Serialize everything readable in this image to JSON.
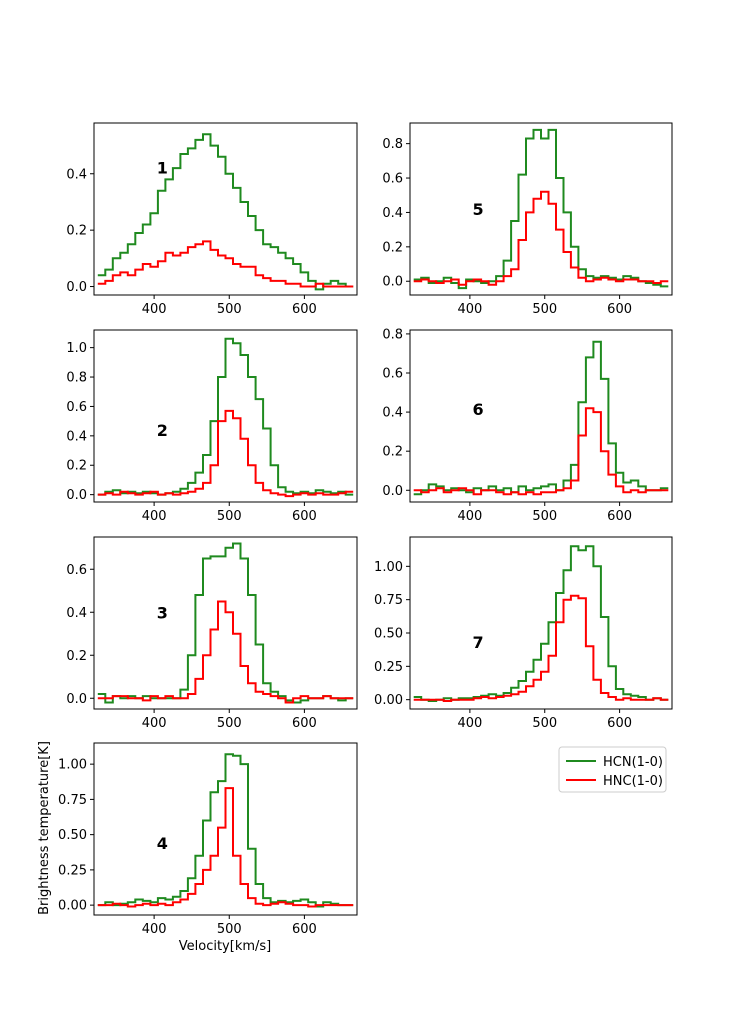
{
  "chart_data": {
    "type": "line",
    "style": "step",
    "xlabel": "Velocity[km/s]",
    "ylabel": "Brightness temperature[K]",
    "colors": {
      "HCN": "#1f8a1f",
      "HNC": "#ff0000"
    },
    "legend": {
      "position": "right-bottom",
      "entries": [
        {
          "name": "HCN(1-0)",
          "color": "#1f8a1f"
        },
        {
          "name": "HNC(1-0)",
          "color": "#ff0000"
        }
      ]
    },
    "xlim": [
      320,
      670
    ],
    "x": [
      330,
      340,
      350,
      360,
      370,
      380,
      390,
      400,
      410,
      420,
      430,
      440,
      450,
      460,
      470,
      480,
      490,
      500,
      510,
      520,
      530,
      540,
      550,
      560,
      570,
      580,
      590,
      600,
      610,
      620,
      630,
      640,
      650,
      660
    ],
    "panels": [
      {
        "id": "1",
        "label": "1",
        "ylim": [
          -0.03,
          0.58
        ],
        "yticks": [
          0.0,
          0.2,
          0.4
        ],
        "ytick_labels": [
          "0.0",
          "0.2",
          "0.4"
        ],
        "xticks": [
          400,
          500,
          600
        ],
        "xtick_labels": [
          "400",
          "500",
          "600"
        ],
        "series": [
          {
            "name": "HCN(1-0)",
            "values": [
              0.04,
              0.06,
              0.1,
              0.12,
              0.15,
              0.19,
              0.22,
              0.26,
              0.34,
              0.38,
              0.42,
              0.47,
              0.49,
              0.52,
              0.54,
              0.5,
              0.46,
              0.4,
              0.35,
              0.3,
              0.25,
              0.2,
              0.15,
              0.14,
              0.12,
              0.1,
              0.08,
              0.05,
              0.02,
              -0.01,
              0.01,
              0.02,
              0.01,
              0.0
            ]
          },
          {
            "name": "HNC(1-0)",
            "values": [
              0.01,
              0.02,
              0.04,
              0.05,
              0.04,
              0.06,
              0.08,
              0.07,
              0.09,
              0.12,
              0.11,
              0.12,
              0.14,
              0.15,
              0.16,
              0.13,
              0.11,
              0.1,
              0.08,
              0.07,
              0.07,
              0.04,
              0.03,
              0.02,
              0.02,
              0.01,
              0.01,
              0.0,
              0.0,
              0.01,
              0.0,
              0.0,
              0.0,
              0.0
            ]
          }
        ]
      },
      {
        "id": "5",
        "label": "5",
        "ylim": [
          -0.08,
          0.92
        ],
        "yticks": [
          0.0,
          0.2,
          0.4,
          0.6,
          0.8
        ],
        "ytick_labels": [
          "0.0",
          "0.2",
          "0.4",
          "0.6",
          "0.8"
        ],
        "xticks": [
          400,
          500,
          600
        ],
        "xtick_labels": [
          "400",
          "500",
          "600"
        ],
        "series": [
          {
            "name": "HCN(1-0)",
            "values": [
              0.01,
              0.02,
              -0.01,
              0.0,
              0.02,
              -0.01,
              -0.04,
              0.01,
              0.0,
              -0.01,
              0.0,
              0.03,
              0.12,
              0.35,
              0.62,
              0.83,
              0.88,
              0.83,
              0.88,
              0.6,
              0.4,
              0.2,
              0.07,
              0.03,
              0.02,
              0.03,
              0.02,
              0.01,
              0.03,
              0.02,
              0.0,
              -0.01,
              -0.02,
              -0.03
            ]
          },
          {
            "name": "HNC(1-0)",
            "values": [
              0.0,
              0.01,
              0.0,
              -0.01,
              0.0,
              0.01,
              -0.02,
              0.0,
              0.01,
              0.0,
              -0.02,
              0.0,
              0.03,
              0.07,
              0.24,
              0.4,
              0.48,
              0.52,
              0.45,
              0.3,
              0.17,
              0.08,
              0.02,
              0.0,
              0.01,
              0.02,
              0.01,
              0.0,
              0.01,
              0.01,
              0.0,
              0.0,
              -0.01,
              0.0
            ]
          }
        ]
      },
      {
        "id": "2",
        "label": "2",
        "ylim": [
          -0.05,
          1.12
        ],
        "yticks": [
          0.0,
          0.2,
          0.4,
          0.6,
          0.8,
          1.0
        ],
        "ytick_labels": [
          "0.0",
          "0.2",
          "0.4",
          "0.6",
          "0.8",
          "1.0"
        ],
        "xticks": [
          400,
          500,
          600
        ],
        "xtick_labels": [
          "400",
          "500",
          "600"
        ],
        "series": [
          {
            "name": "HCN(1-0)",
            "values": [
              0.0,
              0.02,
              0.03,
              0.01,
              0.02,
              0.01,
              0.02,
              0.01,
              0.0,
              0.01,
              0.02,
              0.04,
              0.08,
              0.15,
              0.27,
              0.5,
              0.8,
              1.06,
              1.03,
              0.95,
              0.8,
              0.65,
              0.45,
              0.2,
              0.05,
              0.02,
              0.01,
              0.02,
              0.01,
              0.03,
              0.02,
              0.01,
              0.02,
              0.0
            ]
          },
          {
            "name": "HNC(1-0)",
            "values": [
              0.0,
              0.01,
              0.0,
              0.02,
              0.01,
              0.0,
              0.01,
              0.02,
              0.0,
              0.01,
              0.0,
              0.01,
              0.02,
              0.04,
              0.08,
              0.2,
              0.5,
              0.57,
              0.52,
              0.38,
              0.2,
              0.08,
              0.03,
              0.01,
              0.0,
              -0.01,
              0.0,
              0.01,
              0.0,
              0.01,
              0.0,
              0.0,
              0.01,
              0.02
            ]
          }
        ]
      },
      {
        "id": "6",
        "label": "6",
        "ylim": [
          -0.06,
          0.82
        ],
        "yticks": [
          0.0,
          0.2,
          0.4,
          0.6,
          0.8
        ],
        "ytick_labels": [
          "0.0",
          "0.2",
          "0.4",
          "0.6",
          "0.8"
        ],
        "xticks": [
          400,
          500,
          600
        ],
        "xtick_labels": [
          "400",
          "500",
          "600"
        ],
        "series": [
          {
            "name": "HCN(1-0)",
            "values": [
              -0.02,
              0.0,
              0.03,
              0.02,
              0.0,
              0.01,
              0.0,
              -0.01,
              0.01,
              0.0,
              0.02,
              0.0,
              0.01,
              -0.01,
              0.02,
              0.0,
              0.01,
              0.02,
              0.03,
              0.0,
              0.05,
              0.13,
              0.45,
              0.68,
              0.76,
              0.57,
              0.24,
              0.09,
              0.04,
              0.05,
              0.02,
              0.0,
              0.0,
              0.01
            ]
          },
          {
            "name": "HNC(1-0)",
            "values": [
              0.0,
              -0.01,
              0.0,
              0.01,
              -0.01,
              0.0,
              0.01,
              0.0,
              -0.02,
              0.0,
              0.0,
              -0.01,
              -0.02,
              -0.01,
              -0.02,
              -0.01,
              -0.02,
              -0.01,
              -0.01,
              0.0,
              0.01,
              0.05,
              0.28,
              0.42,
              0.4,
              0.2,
              0.08,
              0.02,
              -0.01,
              0.0,
              -0.01,
              0.0,
              0.0,
              0.0
            ]
          }
        ]
      },
      {
        "id": "3",
        "label": "3",
        "ylim": [
          -0.05,
          0.75
        ],
        "yticks": [
          0.0,
          0.2,
          0.4,
          0.6
        ],
        "ytick_labels": [
          "0.0",
          "0.2",
          "0.4",
          "0.6"
        ],
        "xticks": [
          400,
          500,
          600
        ],
        "xtick_labels": [
          "400",
          "500",
          "600"
        ],
        "series": [
          {
            "name": "HCN(1-0)",
            "values": [
              0.02,
              -0.02,
              0.01,
              0.0,
              0.01,
              0.0,
              0.01,
              0.0,
              0.0,
              0.0,
              0.0,
              0.04,
              0.2,
              0.48,
              0.65,
              0.66,
              0.66,
              0.7,
              0.72,
              0.65,
              0.48,
              0.25,
              0.07,
              0.03,
              0.01,
              -0.01,
              -0.02,
              -0.01,
              0.0,
              0.0,
              0.01,
              0.0,
              -0.01,
              0.0
            ]
          },
          {
            "name": "HNC(1-0)",
            "values": [
              0.0,
              0.0,
              0.01,
              0.01,
              0.0,
              0.0,
              -0.01,
              0.01,
              0.0,
              0.01,
              0.0,
              0.0,
              0.02,
              0.09,
              0.2,
              0.32,
              0.45,
              0.4,
              0.3,
              0.15,
              0.07,
              0.03,
              0.02,
              0.01,
              0.0,
              -0.02,
              0.0,
              0.01,
              0.0,
              0.0,
              0.01,
              0.0,
              0.0,
              0.0
            ]
          }
        ]
      },
      {
        "id": "7",
        "label": "7",
        "ylim": [
          -0.07,
          1.22
        ],
        "yticks": [
          0.0,
          0.25,
          0.5,
          0.75,
          1.0
        ],
        "ytick_labels": [
          "0.00",
          "0.25",
          "0.50",
          "0.75",
          "1.00"
        ],
        "xticks": [
          400,
          500,
          600
        ],
        "xtick_labels": [
          "400",
          "500",
          "600"
        ],
        "series": [
          {
            "name": "HCN(1-0)",
            "values": [
              0.02,
              0.0,
              -0.01,
              0.0,
              0.01,
              0.0,
              0.01,
              0.01,
              0.02,
              0.03,
              0.04,
              0.03,
              0.05,
              0.09,
              0.14,
              0.21,
              0.3,
              0.42,
              0.58,
              0.8,
              0.97,
              1.15,
              1.12,
              1.15,
              1.0,
              0.62,
              0.25,
              0.08,
              0.04,
              0.03,
              0.02,
              0.0,
              0.01,
              0.0
            ]
          },
          {
            "name": "HNC(1-0)",
            "values": [
              0.0,
              0.0,
              0.0,
              0.0,
              -0.01,
              0.0,
              0.0,
              0.0,
              0.01,
              0.02,
              0.01,
              0.02,
              0.03,
              0.04,
              0.06,
              0.1,
              0.15,
              0.21,
              0.33,
              0.58,
              0.75,
              0.78,
              0.76,
              0.4,
              0.15,
              0.05,
              0.02,
              0.0,
              0.01,
              0.0,
              0.0,
              0.0,
              0.01,
              0.0
            ]
          }
        ]
      },
      {
        "id": "4",
        "label": "4",
        "ylim": [
          -0.07,
          1.15
        ],
        "yticks": [
          0.0,
          0.25,
          0.5,
          0.75,
          1.0
        ],
        "ytick_labels": [
          "0.00",
          "0.25",
          "0.50",
          "0.75",
          "1.00"
        ],
        "xticks": [
          400,
          500,
          600
        ],
        "xtick_labels": [
          "400",
          "500",
          "600"
        ],
        "series": [
          {
            "name": "HCN(1-0)",
            "values": [
              0.0,
              0.02,
              0.0,
              0.01,
              0.02,
              0.04,
              0.03,
              0.02,
              0.05,
              0.04,
              0.06,
              0.1,
              0.19,
              0.35,
              0.6,
              0.8,
              0.88,
              1.07,
              1.06,
              1.0,
              0.4,
              0.15,
              0.05,
              0.02,
              0.03,
              0.02,
              0.03,
              0.04,
              0.02,
              -0.01,
              0.02,
              0.01,
              0.0,
              0.0
            ]
          },
          {
            "name": "HNC(1-0)",
            "values": [
              0.0,
              0.0,
              0.01,
              0.0,
              -0.01,
              0.0,
              0.01,
              0.0,
              0.01,
              0.0,
              0.02,
              0.04,
              0.08,
              0.15,
              0.25,
              0.35,
              0.55,
              0.83,
              0.35,
              0.15,
              0.05,
              0.01,
              0.0,
              0.01,
              0.02,
              0.01,
              0.0,
              0.0,
              -0.01,
              0.0,
              0.0,
              0.0,
              0.0,
              0.0
            ]
          }
        ]
      }
    ]
  }
}
